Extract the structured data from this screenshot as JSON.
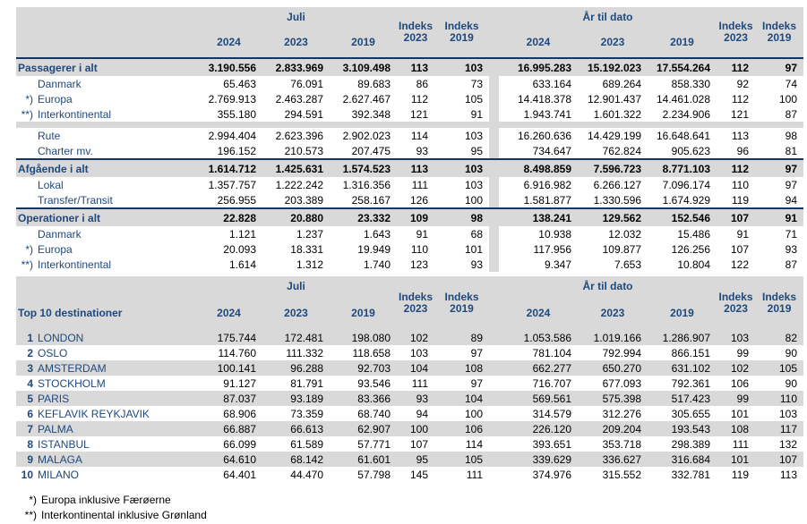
{
  "colors": {
    "header_bg": "#D9D9D9",
    "shade_bg": "#D9D9D9",
    "navy_text": "#1F497D",
    "total_border": "#16365C",
    "number_text": "#000000"
  },
  "table1": {
    "label_header": "",
    "month_header": "Juli",
    "ytd_header": "År til dato",
    "year_cols": [
      "2024",
      "2023",
      "2019"
    ],
    "index_cols": [
      {
        "line1": "Indeks",
        "line2": "2023"
      },
      {
        "line1": "Indeks",
        "line2": "2019"
      }
    ],
    "rows": [
      {
        "style": "total",
        "marker": "",
        "label": "Passagerer i alt",
        "cells": [
          "3.190.556",
          "2.833.969",
          "3.109.498",
          "113",
          "103",
          "16.995.283",
          "15.192.023",
          "17.554.264",
          "112",
          "97"
        ]
      },
      {
        "style": "sub",
        "marker": "",
        "label": "Danmark",
        "cells": [
          "65.463",
          "76.091",
          "89.683",
          "86",
          "73",
          "633.164",
          "689.264",
          "858.330",
          "92",
          "74"
        ]
      },
      {
        "style": "sub",
        "marker": "*)",
        "label": "Europa",
        "cells": [
          "2.769.913",
          "2.463.287",
          "2.627.467",
          "112",
          "105",
          "14.418.378",
          "12.901.437",
          "14.461.028",
          "112",
          "100"
        ]
      },
      {
        "style": "sub",
        "marker": "**)",
        "label": "Interkontinental",
        "cells": [
          "355.180",
          "294.591",
          "392.348",
          "121",
          "91",
          "1.943.741",
          "1.601.322",
          "2.234.906",
          "121",
          "87"
        ]
      },
      {
        "style": "gap"
      },
      {
        "style": "sub",
        "marker": "",
        "label": "Rute",
        "cells": [
          "2.994.404",
          "2.623.396",
          "2.902.023",
          "114",
          "103",
          "16.260.636",
          "14.429.199",
          "16.648.641",
          "113",
          "98"
        ]
      },
      {
        "style": "sub",
        "marker": "",
        "label": "Charter mv.",
        "cells": [
          "196.152",
          "210.573",
          "207.475",
          "93",
          "95",
          "734.647",
          "762.824",
          "905.623",
          "96",
          "81"
        ]
      },
      {
        "style": "total",
        "marker": "",
        "label": "Afgående i alt",
        "cells": [
          "1.614.712",
          "1.425.631",
          "1.574.523",
          "113",
          "103",
          "8.498.859",
          "7.596.723",
          "8.771.103",
          "112",
          "97"
        ]
      },
      {
        "style": "sub",
        "marker": "",
        "label": "Lokal",
        "cells": [
          "1.357.757",
          "1.222.242",
          "1.316.356",
          "111",
          "103",
          "6.916.982",
          "6.266.127",
          "7.096.174",
          "110",
          "97"
        ]
      },
      {
        "style": "sub",
        "marker": "",
        "label": "Transfer/Transit",
        "cells": [
          "256.955",
          "203.389",
          "258.167",
          "126",
          "100",
          "1.581.877",
          "1.330.596",
          "1.674.929",
          "119",
          "94"
        ]
      },
      {
        "style": "total",
        "marker": "",
        "label": "Operationer i alt",
        "cells": [
          "22.828",
          "20.880",
          "23.332",
          "109",
          "98",
          "138.241",
          "129.562",
          "152.546",
          "107",
          "91"
        ]
      },
      {
        "style": "sub",
        "marker": "",
        "label": "Danmark",
        "cells": [
          "1.121",
          "1.237",
          "1.643",
          "91",
          "68",
          "10.938",
          "12.032",
          "15.486",
          "91",
          "71"
        ]
      },
      {
        "style": "sub",
        "marker": "*)",
        "label": "Europa",
        "cells": [
          "20.093",
          "18.331",
          "19.949",
          "110",
          "101",
          "117.956",
          "109.877",
          "126.256",
          "107",
          "93"
        ]
      },
      {
        "style": "sub",
        "marker": "**)",
        "label": "Interkontinental",
        "cells": [
          "1.614",
          "1.312",
          "1.740",
          "123",
          "93",
          "9.347",
          "7.653",
          "10.804",
          "122",
          "87"
        ]
      }
    ]
  },
  "table2": {
    "label_header": "Top 10 destinationer",
    "month_header": "Juli",
    "ytd_header": "År til dato",
    "year_cols": [
      "2024",
      "2023",
      "2019"
    ],
    "index_cols": [
      {
        "line1": "Indeks",
        "line2": "2023"
      },
      {
        "line1": "Indeks",
        "line2": "2019"
      }
    ],
    "rows": [
      {
        "rank": "1",
        "label": "LONDON",
        "cells": [
          "175.744",
          "172.481",
          "198.080",
          "102",
          "89",
          "1.053.586",
          "1.019.166",
          "1.286.907",
          "103",
          "82"
        ]
      },
      {
        "rank": "2",
        "label": "OSLO",
        "cells": [
          "114.760",
          "111.332",
          "118.658",
          "103",
          "97",
          "781.104",
          "792.994",
          "866.151",
          "99",
          "90"
        ]
      },
      {
        "rank": "3",
        "label": "AMSTERDAM",
        "cells": [
          "100.141",
          "96.288",
          "92.703",
          "104",
          "108",
          "662.277",
          "650.270",
          "631.102",
          "102",
          "105"
        ]
      },
      {
        "rank": "4",
        "label": "STOCKHOLM",
        "cells": [
          "91.127",
          "81.791",
          "93.546",
          "111",
          "97",
          "716.707",
          "677.093",
          "792.361",
          "106",
          "90"
        ]
      },
      {
        "rank": "5",
        "label": "PARIS",
        "cells": [
          "87.037",
          "93.189",
          "83.366",
          "93",
          "104",
          "569.561",
          "575.398",
          "517.423",
          "99",
          "110"
        ]
      },
      {
        "rank": "6",
        "label": "KEFLAVIK REYKJAVIK",
        "cells": [
          "68.906",
          "73.359",
          "68.740",
          "94",
          "100",
          "314.579",
          "312.276",
          "305.655",
          "101",
          "103"
        ]
      },
      {
        "rank": "7",
        "label": "PALMA",
        "cells": [
          "66.887",
          "66.613",
          "62.907",
          "100",
          "106",
          "226.120",
          "209.204",
          "193.543",
          "108",
          "117"
        ]
      },
      {
        "rank": "8",
        "label": "ISTANBUL",
        "cells": [
          "66.099",
          "61.589",
          "57.771",
          "107",
          "114",
          "393.651",
          "353.718",
          "298.389",
          "111",
          "132"
        ]
      },
      {
        "rank": "9",
        "label": "MALAGA",
        "cells": [
          "64.610",
          "68.142",
          "61.601",
          "95",
          "105",
          "339.629",
          "336.627",
          "316.684",
          "101",
          "107"
        ]
      },
      {
        "rank": "10",
        "label": "MILANO",
        "cells": [
          "64.401",
          "44.470",
          "57.798",
          "145",
          "111",
          "374.976",
          "315.552",
          "332.781",
          "119",
          "113"
        ]
      }
    ]
  },
  "footnotes": [
    {
      "marker": "*)",
      "text": "Europa inklusive Færøerne"
    },
    {
      "marker": "**)",
      "text": "Interkontinental inklusive Grønland"
    }
  ]
}
